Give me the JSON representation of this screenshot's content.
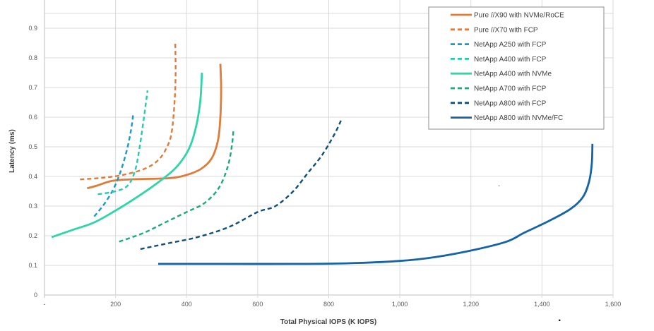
{
  "chart_data": {
    "type": "line",
    "title": "",
    "xlabel": "Total Physical IOPS (K IOPS)",
    "ylabel": "Latency (ms)",
    "xlim": [
      0,
      1600
    ],
    "ylim": [
      0,
      0.95
    ],
    "x_ticks": [
      0,
      200,
      400,
      600,
      800,
      1000,
      1200,
      1400,
      1600
    ],
    "x_tick_labels": [
      "-",
      "200",
      "400",
      "600",
      "800",
      "1,000",
      "1,200",
      "1,400",
      "1,600"
    ],
    "y_ticks": [
      0,
      0.1,
      0.2,
      0.3,
      0.4,
      0.5,
      0.6,
      0.7,
      0.8,
      0.9
    ],
    "y_tick_labels": [
      "0",
      "0.1",
      "0.2",
      "0.3",
      "0.4",
      "0.5",
      "0.6",
      "0.7",
      "0.8",
      "0.9"
    ],
    "grid": true,
    "legend_position": "top-right",
    "series": [
      {
        "name": "Pure //X90 with NVMe/RoCE",
        "color": "#e07b39",
        "dash": false,
        "points": [
          [
            120,
            0.36
          ],
          [
            150,
            0.37
          ],
          [
            190,
            0.385
          ],
          [
            240,
            0.39
          ],
          [
            300,
            0.392
          ],
          [
            360,
            0.395
          ],
          [
            400,
            0.405
          ],
          [
            440,
            0.425
          ],
          [
            470,
            0.46
          ],
          [
            488,
            0.52
          ],
          [
            495,
            0.6
          ],
          [
            497,
            0.7
          ],
          [
            495,
            0.78
          ]
        ]
      },
      {
        "name": "Pure //X70 with FCP",
        "color": "#e07b39",
        "dash": true,
        "points": [
          [
            100,
            0.39
          ],
          [
            160,
            0.395
          ],
          [
            220,
            0.405
          ],
          [
            280,
            0.425
          ],
          [
            320,
            0.455
          ],
          [
            345,
            0.5
          ],
          [
            358,
            0.55
          ],
          [
            366,
            0.65
          ],
          [
            369,
            0.75
          ],
          [
            368,
            0.85
          ]
        ]
      },
      {
        "name": "NetApp A250 with FCP",
        "color": "#1b9ac6",
        "dash": true,
        "points": [
          [
            140,
            0.265
          ],
          [
            170,
            0.31
          ],
          [
            195,
            0.36
          ],
          [
            215,
            0.42
          ],
          [
            232,
            0.49
          ],
          [
            244,
            0.56
          ],
          [
            250,
            0.615
          ]
        ]
      },
      {
        "name": "NetApp A400 with FCP",
        "color": "#27c9b0",
        "dash": true,
        "points": [
          [
            150,
            0.34
          ],
          [
            200,
            0.35
          ],
          [
            235,
            0.37
          ],
          [
            255,
            0.42
          ],
          [
            268,
            0.5
          ],
          [
            280,
            0.6
          ],
          [
            290,
            0.69
          ]
        ]
      },
      {
        "name": "NetApp A400 with NVMe",
        "color": "#2fd5a8",
        "dash": false,
        "points": [
          [
            20,
            0.195
          ],
          [
            80,
            0.22
          ],
          [
            140,
            0.245
          ],
          [
            200,
            0.285
          ],
          [
            260,
            0.33
          ],
          [
            320,
            0.38
          ],
          [
            370,
            0.43
          ],
          [
            405,
            0.49
          ],
          [
            425,
            0.56
          ],
          [
            438,
            0.65
          ],
          [
            443,
            0.75
          ]
        ]
      },
      {
        "name": "NetApp A700 with FCP",
        "color": "#1aaa7e",
        "dash": true,
        "points": [
          [
            210,
            0.18
          ],
          [
            280,
            0.21
          ],
          [
            340,
            0.245
          ],
          [
            400,
            0.28
          ],
          [
            450,
            0.31
          ],
          [
            490,
            0.36
          ],
          [
            515,
            0.43
          ],
          [
            527,
            0.5
          ],
          [
            532,
            0.56
          ]
        ]
      },
      {
        "name": "NetApp A800 with FCP",
        "color": "#0f4f79",
        "dash": true,
        "points": [
          [
            270,
            0.155
          ],
          [
            350,
            0.175
          ],
          [
            430,
            0.195
          ],
          [
            520,
            0.23
          ],
          [
            600,
            0.28
          ],
          [
            650,
            0.3
          ],
          [
            700,
            0.35
          ],
          [
            740,
            0.41
          ],
          [
            780,
            0.47
          ],
          [
            815,
            0.54
          ],
          [
            835,
            0.59
          ]
        ]
      },
      {
        "name": "NetApp A800 with NVMe/FC",
        "color": "#1663a5",
        "dash": false,
        "points": [
          [
            320,
            0.105
          ],
          [
            500,
            0.105
          ],
          [
            700,
            0.105
          ],
          [
            850,
            0.107
          ],
          [
            1000,
            0.115
          ],
          [
            1100,
            0.128
          ],
          [
            1200,
            0.15
          ],
          [
            1300,
            0.18
          ],
          [
            1350,
            0.21
          ],
          [
            1420,
            0.25
          ],
          [
            1480,
            0.29
          ],
          [
            1515,
            0.33
          ],
          [
            1532,
            0.38
          ],
          [
            1540,
            0.44
          ],
          [
            1542,
            0.51
          ]
        ]
      }
    ],
    "annotations": [
      ".",
      "."
    ]
  }
}
